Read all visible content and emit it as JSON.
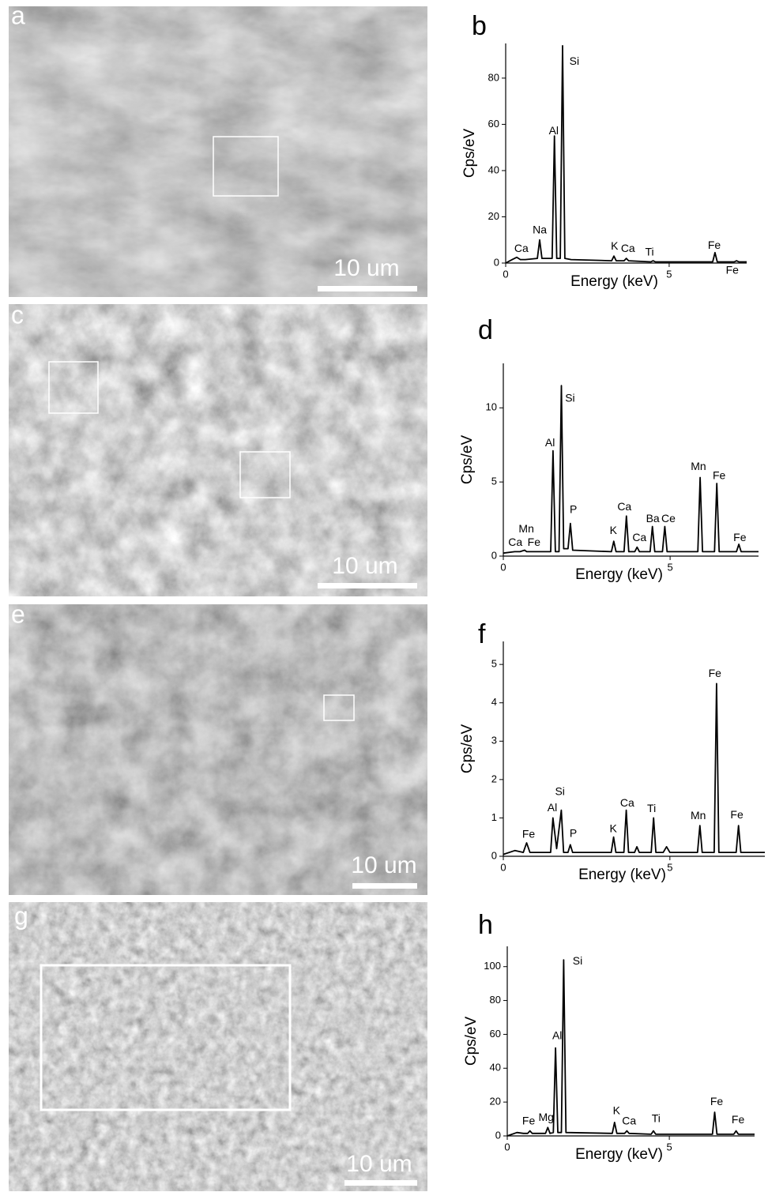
{
  "images": [
    {
      "label": "a",
      "scale": "10 um"
    },
    {
      "label": "c",
      "scale": "10 um"
    },
    {
      "label": "e",
      "scale": "10 um"
    },
    {
      "label": "g",
      "scale": "10 um"
    }
  ],
  "chart_data": [
    {
      "type": "line",
      "label": "b",
      "x_label": "Energy (keV)",
      "y_label": "Cps/eV",
      "color": "#000000",
      "xlim": [
        0,
        7.37
      ],
      "xticks": [
        0,
        5
      ],
      "ylim": [
        0,
        95
      ],
      "yticks": [
        0,
        20,
        40,
        60,
        80
      ],
      "x": [
        0,
        0.2,
        0.34,
        0.45,
        0.6,
        0.97,
        1.04,
        1.11,
        1.3,
        1.42,
        1.49,
        1.56,
        1.67,
        1.74,
        1.81,
        2.0,
        3.24,
        3.31,
        3.38,
        3.62,
        3.69,
        3.76,
        4.44,
        4.51,
        4.58,
        6.0,
        6.33,
        6.4,
        6.47,
        6.99,
        7.06,
        7.13,
        7.37
      ],
      "values": [
        0,
        1.5,
        2.5,
        1.5,
        1.5,
        2,
        10,
        2,
        2,
        2,
        55,
        2,
        2,
        94,
        2,
        1.5,
        1,
        3,
        1,
        1,
        2,
        1,
        0.5,
        1,
        0.5,
        0.5,
        0.5,
        4.5,
        0.5,
        0.5,
        1,
        0.5,
        0.5
      ],
      "annotations": [
        {
          "text": "Ca",
          "x": 0.48,
          "y": 6
        },
        {
          "text": "Na",
          "x": 1.04,
          "y": 14
        },
        {
          "text": "Al",
          "x": 1.47,
          "y": 57
        },
        {
          "text": "Si",
          "x": 2.1,
          "y": 87
        },
        {
          "text": "K",
          "x": 3.33,
          "y": 7
        },
        {
          "text": "Ca",
          "x": 3.74,
          "y": 6
        },
        {
          "text": "Ti",
          "x": 4.4,
          "y": 4.5
        },
        {
          "text": "Fe",
          "x": 6.38,
          "y": 7.5
        },
        {
          "text": "Fe",
          "x": 6.93,
          "y": -3.4
        }
      ]
    },
    {
      "type": "line",
      "label": "d",
      "x_label": "Energy (keV)",
      "y_label": "Cps/eV",
      "color": "#000000",
      "xlim": [
        0,
        7.65
      ],
      "xticks": [
        0,
        5
      ],
      "ylim": [
        0,
        13
      ],
      "yticks": [
        0,
        5,
        10
      ],
      "x": [
        0,
        0.34,
        0.5,
        0.64,
        0.7,
        0.9,
        1.42,
        1.49,
        1.56,
        1.67,
        1.74,
        1.81,
        1.94,
        2.01,
        2.08,
        3.24,
        3.31,
        3.38,
        3.62,
        3.69,
        3.76,
        3.94,
        4.01,
        4.08,
        4.4,
        4.47,
        4.54,
        4.77,
        4.84,
        4.91,
        5.83,
        5.9,
        5.97,
        6.33,
        6.4,
        6.47,
        6.99,
        7.06,
        7.13,
        7.65
      ],
      "values": [
        0.2,
        0.3,
        0.3,
        0.4,
        0.3,
        0.3,
        0.3,
        7.1,
        0.3,
        0.3,
        11.5,
        0.5,
        0.5,
        2.2,
        0.4,
        0.3,
        1.0,
        0.3,
        0.3,
        2.7,
        0.3,
        0.3,
        0.6,
        0.3,
        0.3,
        2.0,
        0.3,
        0.3,
        2.0,
        0.3,
        0.3,
        5.3,
        0.3,
        0.3,
        4.9,
        0.3,
        0.3,
        0.8,
        0.3,
        0.3
      ],
      "annotations": [
        {
          "text": "Mn",
          "x": 0.69,
          "y": 1.8
        },
        {
          "text": "Ca",
          "x": 0.36,
          "y": 0.9
        },
        {
          "text": "Fe",
          "x": 0.92,
          "y": 0.9
        },
        {
          "text": "Al",
          "x": 1.4,
          "y": 7.6
        },
        {
          "text": "Si",
          "x": 2.0,
          "y": 10.6
        },
        {
          "text": "P",
          "x": 2.1,
          "y": 3.1
        },
        {
          "text": "K",
          "x": 3.3,
          "y": 1.7
        },
        {
          "text": "Ca",
          "x": 3.63,
          "y": 3.3
        },
        {
          "text": "Ca",
          "x": 4.08,
          "y": 1.2
        },
        {
          "text": "Ba",
          "x": 4.48,
          "y": 2.5
        },
        {
          "text": "Ce",
          "x": 4.95,
          "y": 2.5
        },
        {
          "text": "Mn",
          "x": 5.85,
          "y": 6.0
        },
        {
          "text": "Fe",
          "x": 6.47,
          "y": 5.4
        },
        {
          "text": "Fe",
          "x": 7.09,
          "y": 1.2
        }
      ]
    },
    {
      "type": "line",
      "label": "f",
      "x_label": "Energy (keV)",
      "y_label": "Cps/eV",
      "color": "#000000",
      "xlim": [
        0,
        7.85
      ],
      "xticks": [
        0,
        5
      ],
      "ylim": [
        0,
        5.6
      ],
      "yticks": [
        0,
        1,
        2,
        3,
        4,
        5
      ],
      "x": [
        0,
        0.35,
        0.6,
        0.7,
        0.8,
        1.42,
        1.49,
        1.6,
        1.74,
        1.81,
        1.94,
        2.01,
        2.08,
        3.24,
        3.31,
        3.38,
        3.62,
        3.69,
        3.76,
        3.94,
        4.01,
        4.08,
        4.44,
        4.51,
        4.58,
        4.8,
        4.9,
        5.0,
        5.83,
        5.9,
        5.97,
        6.33,
        6.4,
        6.47,
        6.99,
        7.06,
        7.13,
        7.85
      ],
      "values": [
        0.05,
        0.15,
        0.1,
        0.35,
        0.1,
        0.1,
        1.0,
        0.2,
        1.2,
        0.1,
        0.1,
        0.3,
        0.1,
        0.1,
        0.5,
        0.1,
        0.1,
        1.2,
        0.1,
        0.1,
        0.25,
        0.1,
        0.1,
        1.0,
        0.1,
        0.1,
        0.25,
        0.1,
        0.1,
        0.8,
        0.1,
        0.1,
        4.5,
        0.1,
        0.1,
        0.8,
        0.1,
        0.1
      ],
      "annotations": [
        {
          "text": "Fe",
          "x": 0.76,
          "y": 0.56
        },
        {
          "text": "Al",
          "x": 1.47,
          "y": 1.25
        },
        {
          "text": "Si",
          "x": 1.7,
          "y": 1.67
        },
        {
          "text": "P",
          "x": 2.1,
          "y": 0.58
        },
        {
          "text": "K",
          "x": 3.3,
          "y": 0.7
        },
        {
          "text": "Ca",
          "x": 3.72,
          "y": 1.37
        },
        {
          "text": "Ti",
          "x": 4.45,
          "y": 1.23
        },
        {
          "text": "Mn",
          "x": 5.85,
          "y": 1.04
        },
        {
          "text": "Fe",
          "x": 6.35,
          "y": 4.75
        },
        {
          "text": "Fe",
          "x": 7.01,
          "y": 1.06
        }
      ]
    },
    {
      "type": "line",
      "label": "h",
      "x_label": "Energy (keV)",
      "y_label": "Cps/eV",
      "color": "#000000",
      "xlim": [
        0,
        7.63
      ],
      "xticks": [
        0,
        5
      ],
      "ylim": [
        0,
        112
      ],
      "yticks": [
        0,
        20,
        40,
        60,
        80,
        100
      ],
      "x": [
        0,
        0.3,
        0.5,
        0.63,
        0.7,
        0.77,
        1.18,
        1.25,
        1.32,
        1.42,
        1.49,
        1.56,
        1.67,
        1.74,
        1.81,
        3.24,
        3.31,
        3.38,
        3.62,
        3.69,
        3.76,
        4.44,
        4.51,
        4.58,
        6.33,
        6.4,
        6.47,
        6.99,
        7.06,
        7.13,
        7.63
      ],
      "values": [
        0,
        2,
        1.5,
        1.5,
        3,
        1.5,
        1.5,
        5,
        1.5,
        2,
        52,
        2,
        2,
        104,
        2,
        1.5,
        8,
        1.5,
        1.5,
        3,
        1.5,
        1,
        3,
        1,
        1,
        14,
        1,
        1,
        3,
        1,
        1
      ],
      "annotations": [
        {
          "text": "Fe",
          "x": 0.66,
          "y": 8.4
        },
        {
          "text": "Mg",
          "x": 1.2,
          "y": 10.7
        },
        {
          "text": "Al",
          "x": 1.54,
          "y": 59
        },
        {
          "text": "Si",
          "x": 2.17,
          "y": 103
        },
        {
          "text": "K",
          "x": 3.37,
          "y": 14.5
        },
        {
          "text": "Ca",
          "x": 3.76,
          "y": 8.4
        },
        {
          "text": "Ti",
          "x": 4.59,
          "y": 9.8
        },
        {
          "text": "Fe",
          "x": 6.46,
          "y": 20
        },
        {
          "text": "Fe",
          "x": 7.12,
          "y": 9.3
        }
      ]
    }
  ]
}
